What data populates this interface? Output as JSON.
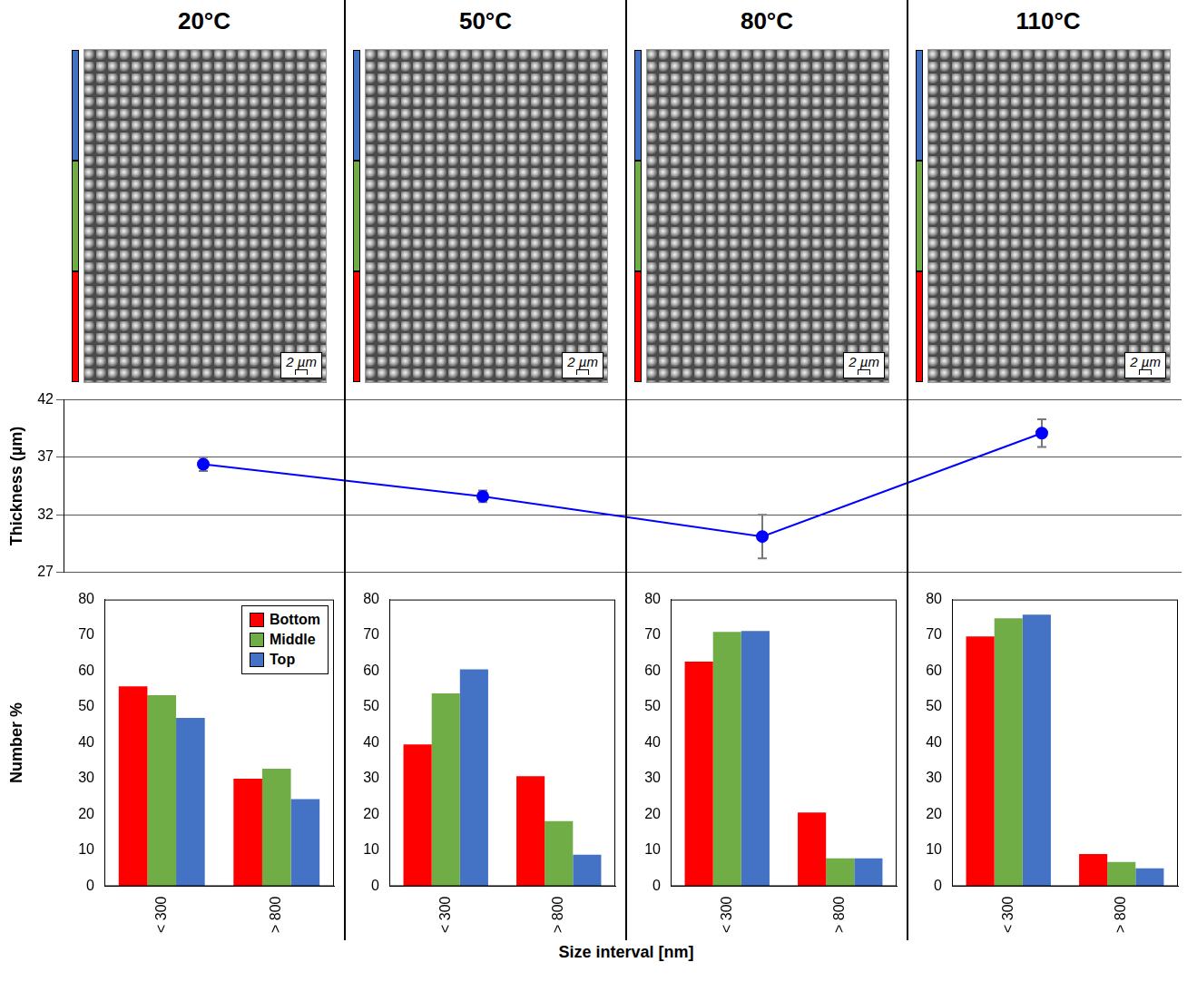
{
  "chart_data": [
    {
      "type": "line",
      "categories": [
        "20°C",
        "50°C",
        "80°C",
        "110°C"
      ],
      "values": [
        36.4,
        33.6,
        30.1,
        39.1
      ],
      "errors": [
        0.6,
        0.5,
        1.9,
        1.2
      ],
      "color": "#0000ff",
      "marker": "circle",
      "ylabel": "Thickness (µm)",
      "ylim": [
        27,
        42
      ],
      "yticks": [
        27,
        32,
        37,
        42
      ],
      "grid": true,
      "tick_labels": "y"
    },
    {
      "type": "bar",
      "categories": [
        "< 300",
        "> 800"
      ],
      "series": [
        {
          "name": "Bottom",
          "color": "#ff0000",
          "values": [
            55.8,
            30.0
          ]
        },
        {
          "name": "Middle",
          "color": "#70ad47",
          "values": [
            53.3,
            32.8
          ]
        },
        {
          "name": "Top",
          "color": "#4472c4",
          "values": [
            47.0,
            24.3
          ]
        }
      ],
      "ylabel": "Number %",
      "ylim": [
        0,
        80
      ],
      "yticks": [
        0,
        10,
        20,
        30,
        40,
        50,
        60,
        70,
        80
      ],
      "grid": false,
      "legend": "top-right"
    },
    {
      "type": "bar",
      "categories": [
        "< 300",
        "> 800"
      ],
      "series": [
        {
          "name": "Bottom",
          "color": "#ff0000",
          "values": [
            39.6,
            30.7
          ]
        },
        {
          "name": "Middle",
          "color": "#70ad47",
          "values": [
            53.8,
            18.2
          ]
        },
        {
          "name": "Top",
          "color": "#4472c4",
          "values": [
            60.5,
            8.8
          ]
        }
      ],
      "ylim": [
        0,
        80
      ],
      "yticks": [
        0,
        10,
        20,
        30,
        40,
        50,
        60,
        70,
        80
      ],
      "grid": false
    },
    {
      "type": "bar",
      "categories": [
        "< 300",
        "> 800"
      ],
      "series": [
        {
          "name": "Bottom",
          "color": "#ff0000",
          "values": [
            62.7,
            20.6
          ]
        },
        {
          "name": "Middle",
          "color": "#70ad47",
          "values": [
            71.0,
            7.8
          ]
        },
        {
          "name": "Top",
          "color": "#4472c4",
          "values": [
            71.2,
            7.8
          ]
        }
      ],
      "ylim": [
        0,
        80
      ],
      "yticks": [
        0,
        10,
        20,
        30,
        40,
        50,
        60,
        70,
        80
      ],
      "grid": false
    },
    {
      "type": "bar",
      "categories": [
        "< 300",
        "> 800"
      ],
      "series": [
        {
          "name": "Bottom",
          "color": "#ff0000",
          "values": [
            69.7,
            9.0
          ]
        },
        {
          "name": "Middle",
          "color": "#70ad47",
          "values": [
            74.8,
            6.8
          ]
        },
        {
          "name": "Top",
          "color": "#4472c4",
          "values": [
            75.8,
            5.0
          ]
        }
      ],
      "ylim": [
        0,
        80
      ],
      "yticks": [
        0,
        10,
        20,
        30,
        40,
        50,
        60,
        70,
        80
      ],
      "grid": false
    }
  ],
  "figure": {
    "x_label": "Size interval [nm]"
  },
  "sem_images": {
    "scale_bar_label": "2 µm"
  }
}
